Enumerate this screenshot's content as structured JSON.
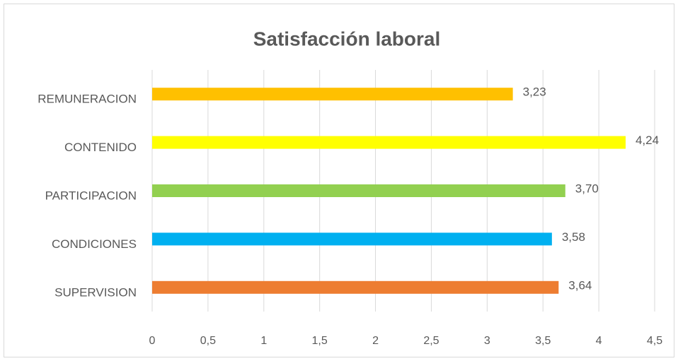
{
  "chart_data": {
    "type": "bar",
    "orientation": "horizontal",
    "title": "Satisfacción laboral",
    "categories": [
      "REMUNERACION",
      "CONTENIDO",
      "PARTICIPACION",
      "CONDICIONES",
      "SUPERVISION"
    ],
    "values": [
      3.23,
      4.24,
      3.7,
      3.58,
      3.64
    ],
    "value_labels": [
      "3,23",
      "4,24",
      "3,70",
      "3,58",
      "3,64"
    ],
    "colors": [
      "#ffc000",
      "#ffff00",
      "#92d050",
      "#00b0f0",
      "#ed7d31"
    ],
    "xlim": [
      0,
      4.5
    ],
    "xticks": [
      0,
      {
        "value": 0.5,
        "label": "0,5"
      },
      1,
      {
        "value": 1.5,
        "label": "1,5"
      },
      2,
      {
        "value": 2.5,
        "label": "2,5"
      },
      3,
      {
        "value": 3.5,
        "label": "3,5"
      },
      4,
      {
        "value": 4.5,
        "label": "4,5"
      }
    ],
    "grid": true
  }
}
